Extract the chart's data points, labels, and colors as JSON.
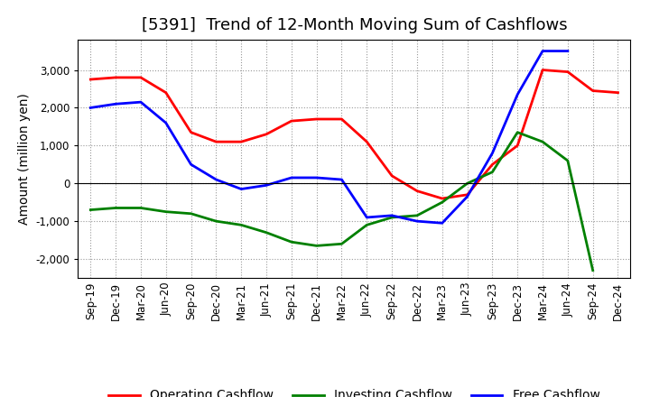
{
  "title": "[5391]  Trend of 12-Month Moving Sum of Cashflows",
  "ylabel": "Amount (million yen)",
  "x_labels": [
    "Sep-19",
    "Dec-19",
    "Mar-20",
    "Jun-20",
    "Sep-20",
    "Dec-20",
    "Mar-21",
    "Jun-21",
    "Sep-21",
    "Dec-21",
    "Mar-22",
    "Jun-22",
    "Sep-22",
    "Dec-22",
    "Mar-23",
    "Jun-23",
    "Sep-23",
    "Dec-23",
    "Mar-24",
    "Jun-24",
    "Sep-24",
    "Dec-24"
  ],
  "operating": [
    2750,
    2800,
    2800,
    2400,
    1350,
    1100,
    1100,
    1300,
    1650,
    1700,
    1700,
    1100,
    200,
    -200,
    -400,
    -300,
    500,
    1000,
    3000,
    2950,
    2450,
    2400
  ],
  "investing": [
    -700,
    -650,
    -650,
    -750,
    -800,
    -1000,
    -1100,
    -1300,
    -1550,
    -1650,
    -1600,
    -1100,
    -900,
    -850,
    -500,
    0,
    300,
    1350,
    1100,
    600,
    -2300,
    null
  ],
  "free": [
    2000,
    2100,
    2150,
    1600,
    500,
    100,
    -150,
    -50,
    150,
    150,
    100,
    -900,
    -850,
    -1000,
    -1050,
    -350,
    800,
    2350,
    3500,
    3500,
    null,
    null
  ],
  "operating_color": "#ff0000",
  "investing_color": "#008000",
  "free_color": "#0000ff",
  "ylim": [
    -2500,
    3800
  ],
  "yticks": [
    -2000,
    -1000,
    0,
    1000,
    2000,
    3000
  ],
  "background_color": "#ffffff",
  "grid_color": "#999999",
  "title_fontsize": 13,
  "legend_fontsize": 10,
  "tick_fontsize": 8.5,
  "ylabel_fontsize": 10
}
